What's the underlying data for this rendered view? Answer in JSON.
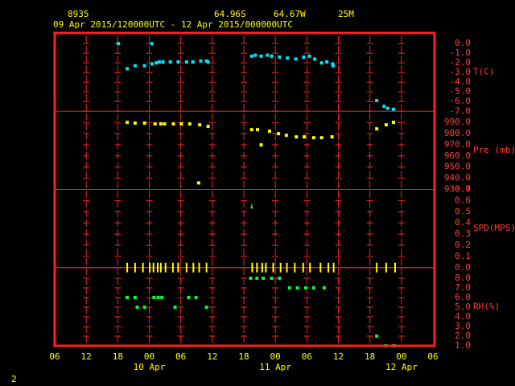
{
  "header": {
    "station": "8935",
    "latitude": "64.96S",
    "longitude": "64.67W",
    "elevation": "25M",
    "period": "09 Apr 2015/120000UTC - 12 Apr 2015/000000UTC"
  },
  "footer": "2",
  "chart_data": {
    "type": "scatter",
    "xlim": [
      6,
      78
    ],
    "xticks": [
      {
        "value": 6,
        "label": "06"
      },
      12,
      18,
      {
        "value": 24,
        "label": "00"
      },
      {
        "value": 30,
        "label": "06"
      },
      {
        "value": 36,
        "label": "12"
      },
      {
        "value": 42,
        "label": "18"
      },
      {
        "value": 48,
        "label": "00"
      },
      {
        "value": 54,
        "label": "06"
      },
      {
        "value": 60,
        "label": "12"
      },
      {
        "value": 66,
        "label": "18"
      },
      {
        "value": 72,
        "label": "00"
      },
      {
        "value": 78,
        "label": "06"
      }
    ],
    "date_labels": [
      {
        "value": 24,
        "label": "10 Apr"
      },
      {
        "value": 48,
        "label": "11 Apr"
      },
      {
        "value": 72,
        "label": "12 Apr"
      }
    ],
    "panels": [
      {
        "label": "T(C)",
        "color": "#00e5ff",
        "marker": "square",
        "ylim": [
          -7,
          1.1
        ],
        "yticks": [
          {
            "value": 0,
            "label": "0.0"
          },
          {
            "value": -1,
            "label": "-1.0"
          },
          {
            "value": -2,
            "label": "-2.0"
          },
          {
            "value": -3,
            "label": "-3.0"
          },
          {
            "value": -4,
            "label": "-4.0"
          },
          {
            "value": -5,
            "label": "-5.0"
          },
          {
            "value": -6,
            "label": "-6.0"
          },
          {
            "value": -7,
            "label": "-7.0"
          }
        ],
        "x": [
          18.1,
          24.5,
          19.8,
          21.3,
          23.1,
          24.5,
          25.3,
          25.9,
          26.6,
          28.0,
          29.5,
          31.1,
          32.3,
          33.8,
          34.9,
          35.2,
          43.5,
          44.2,
          45.3,
          46.5,
          47.3,
          48.8,
          50.3,
          51.9,
          53.4,
          54.5,
          55.5,
          56.8,
          57.8,
          58.9,
          59.0,
          67.3,
          68.7,
          69.4,
          70.5
        ],
        "values": [
          0.0,
          0.0,
          -2.6,
          -2.3,
          -2.3,
          -2.1,
          -2.0,
          -1.9,
          -1.9,
          -1.9,
          -1.9,
          -1.9,
          -1.9,
          -1.8,
          -1.8,
          -1.9,
          -1.3,
          -1.2,
          -1.3,
          -1.2,
          -1.3,
          -1.4,
          -1.5,
          -1.6,
          -1.4,
          -1.3,
          -1.6,
          -2.0,
          -1.9,
          -2.1,
          -2.3,
          -5.9,
          -6.5,
          -6.7,
          -6.8
        ]
      },
      {
        "label": "Pre (mb)",
        "color": "#ffff00",
        "marker": "square",
        "ylim": [
          930,
          1000
        ],
        "yticks": [
          {
            "value": 990,
            "label": "990.0"
          },
          {
            "value": 980,
            "label": "980.0"
          },
          {
            "value": 970,
            "label": "970.0"
          },
          {
            "value": 960,
            "label": "960.0"
          },
          {
            "value": 950,
            "label": "950.0"
          },
          {
            "value": 940,
            "label": "940.0"
          },
          {
            "value": 930,
            "label": "930.0"
          }
        ],
        "x": [
          19.8,
          21.3,
          23.1,
          25.1,
          26.2,
          26.9,
          28.6,
          30.1,
          31.7,
          33.6,
          35.2,
          33.4,
          43.5,
          44.6,
          45.3,
          46.9,
          48.6,
          50.1,
          52.0,
          53.5,
          55.3,
          56.8,
          58.8,
          67.3,
          69.1,
          70.5
        ],
        "values": [
          990.0,
          989.3,
          989.3,
          988.6,
          988.6,
          988.6,
          988.6,
          988.6,
          988.6,
          987.8,
          986.4,
          935.8,
          983.5,
          983.5,
          969.8,
          982.0,
          979.9,
          978.4,
          977.0,
          977.0,
          976.3,
          976.3,
          977.0,
          984.2,
          987.8,
          990.0
        ]
      },
      {
        "label": "SPD(MPS)",
        "color": "#ffff00",
        "marker": "bar",
        "ylim": [
          0,
          0.7
        ],
        "yticks": [
          0.7,
          0.6,
          0.5,
          0.4,
          0.3,
          0.2,
          0.1,
          {
            "value": 0,
            "label": "0.0"
          }
        ],
        "x": [
          19.8,
          21.3,
          22.8,
          24.1,
          24.8,
          25.6,
          26.2,
          27.1,
          28.5,
          29.5,
          31.1,
          32.4,
          33.5,
          34.9,
          43.6,
          44.5,
          45.5,
          46.2,
          47.6,
          49.0,
          50.2,
          51.7,
          53.3,
          54.6,
          56.6,
          58.1,
          59.1,
          67.3,
          69.1,
          70.8
        ],
        "values": [
          0,
          0,
          0,
          0,
          0,
          0,
          0,
          0,
          0,
          0,
          0,
          0,
          0,
          0,
          0,
          0,
          0,
          0,
          0,
          0,
          0,
          0,
          0,
          0,
          0,
          0,
          0,
          0,
          0,
          0
        ],
        "annotations": [
          {
            "text": "↓",
            "x": 43.5,
            "y": 0.55
          }
        ]
      },
      {
        "label": "RH(%)",
        "color": "#00ff33",
        "marker": "square",
        "ylim": [
          1,
          9.1
        ],
        "yticks": [
          {
            "value": 8,
            "label": "8.0"
          },
          {
            "value": 7,
            "label": "7.0"
          },
          {
            "value": 6,
            "label": "6.0"
          },
          {
            "value": 5,
            "label": "5.0"
          },
          {
            "value": 4,
            "label": "4.0"
          },
          {
            "value": 3,
            "label": "3.0"
          },
          {
            "value": 2,
            "label": "2.0"
          },
          {
            "value": 1,
            "label": "1.0"
          }
        ],
        "x": [
          19.8,
          21.3,
          21.7,
          23.1,
          24.9,
          25.7,
          26.4,
          28.9,
          31.5,
          32.9,
          34.9,
          43.3,
          44.5,
          45.7,
          47.3,
          48.8,
          50.7,
          52.2,
          53.8,
          55.3,
          57.3,
          67.3,
          69.0,
          70.6
        ],
        "values": [
          6.0,
          6.0,
          5.0,
          5.0,
          6.0,
          6.0,
          6.0,
          5.0,
          6.0,
          6.0,
          5.0,
          8.0,
          8.0,
          8.0,
          8.0,
          8.0,
          7.0,
          7.0,
          7.0,
          7.0,
          7.0,
          2.0,
          1.0,
          1.0
        ]
      }
    ]
  }
}
